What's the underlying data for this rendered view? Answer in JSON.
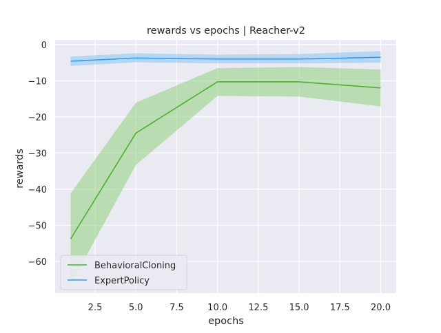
{
  "chart_data": {
    "type": "line",
    "title": "rewards vs epochs | Reacher-v2",
    "xlabel": "epochs",
    "ylabel": "rewards",
    "xlim": [
      0.05,
      20.95
    ],
    "ylim": [
      -68.8,
      1.3
    ],
    "xticks": [
      2.5,
      5.0,
      7.5,
      10.0,
      12.5,
      15.0,
      17.5,
      20.0
    ],
    "xtick_labels": [
      "2.5",
      "5.0",
      "7.5",
      "10.0",
      "12.5",
      "15.0",
      "17.5",
      "20.0"
    ],
    "yticks": [
      0,
      -10,
      -20,
      -30,
      -40,
      -50,
      -60
    ],
    "ytick_labels": [
      "0",
      "−10",
      "−20",
      "−30",
      "−40",
      "−50",
      "−60"
    ],
    "grid": true,
    "legend_position": "lower-left",
    "x": [
      1,
      5,
      10,
      15,
      20
    ],
    "series": [
      {
        "name": "BehavioralCloning",
        "color": "#4daf2f",
        "band_color": "#8fcf80",
        "values": [
          -53.8,
          -24.5,
          -10.3,
          -10.3,
          -12.0
        ],
        "lower": [
          -66.5,
          -33.3,
          -14.2,
          -14.4,
          -17.1
        ],
        "upper": [
          -41.2,
          -16.1,
          -6.5,
          -6.2,
          -6.9
        ]
      },
      {
        "name": "ExpertPolicy",
        "color": "#2a9df4",
        "band_color": "#8cc5f3",
        "values": [
          -4.6,
          -3.7,
          -4.0,
          -4.0,
          -3.5
        ],
        "lower": [
          -5.9,
          -4.9,
          -5.2,
          -5.2,
          -5.0
        ],
        "upper": [
          -3.3,
          -2.4,
          -2.8,
          -2.6,
          -1.8
        ]
      }
    ]
  }
}
